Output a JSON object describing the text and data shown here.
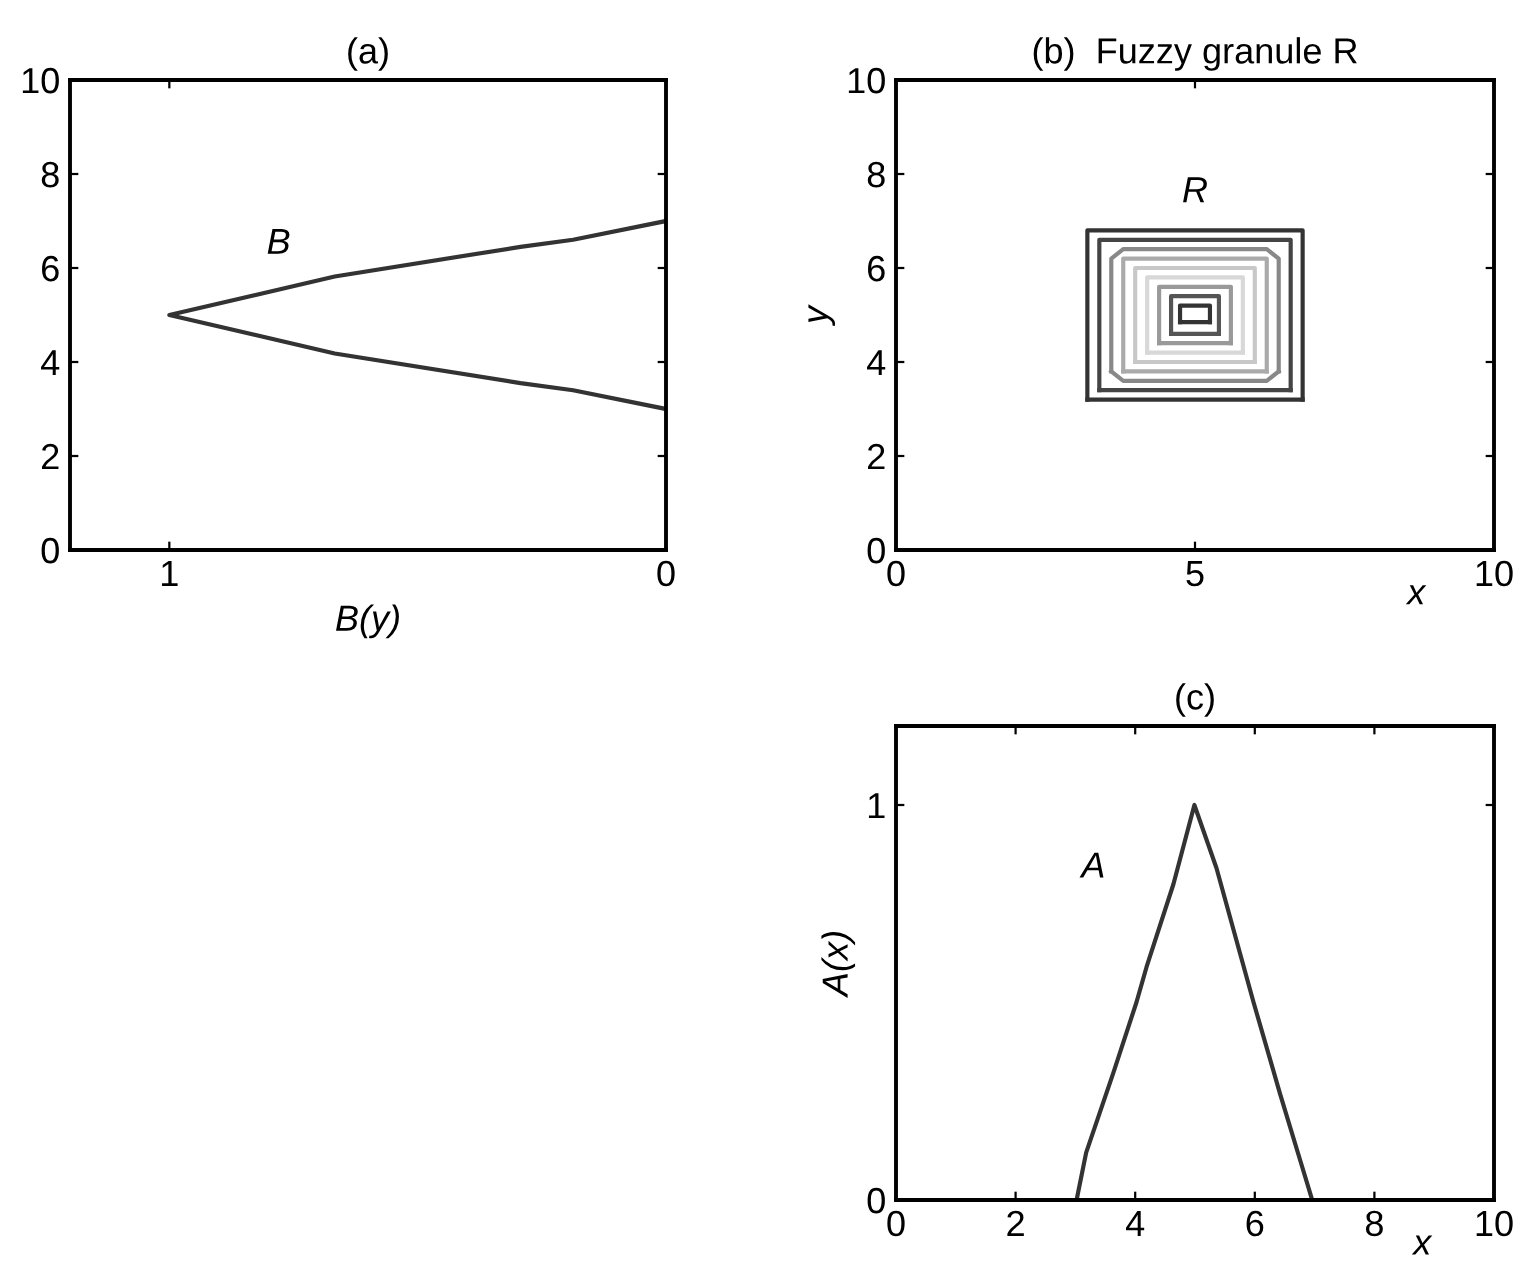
{
  "chart_data": [
    {
      "type": "line",
      "title": "(a)",
      "xlabel": "B(y)",
      "xlim": [
        1.2,
        0
      ],
      "xticks": [
        1,
        0
      ],
      "ylim": [
        0,
        10
      ],
      "yticks": [
        0,
        2,
        4,
        6,
        8,
        10
      ],
      "grid": false,
      "series": [
        {
          "color": "#333333",
          "x": [
            0,
            0.187,
            0.293,
            0.667,
            1,
            0.667,
            0.293,
            0.187,
            0
          ],
          "values": [
            7,
            6.6,
            6.45,
            5.82,
            5,
            4.18,
            3.55,
            3.4,
            3
          ]
        }
      ],
      "annotations": [
        "B"
      ]
    },
    {
      "type": "line",
      "title": "(b)  Fuzzy granule R",
      "xlabel": "x",
      "ylabel": "y",
      "xlim": [
        0,
        10
      ],
      "xticks": [
        0,
        5,
        10
      ],
      "ylim": [
        0,
        10
      ],
      "yticks": [
        0,
        2,
        4,
        6,
        8,
        10
      ],
      "grid": false,
      "series": [
        {
          "color": "#333333",
          "x": [
            3.2,
            3.2,
            6.8,
            6.8
          ],
          "values": [
            3.2,
            6.8,
            6.8,
            3.2
          ]
        },
        {
          "color": "#333333",
          "x": [
            3.2,
            6.8
          ],
          "values": [
            3.2,
            3.2
          ]
        },
        {
          "color": "#444444",
          "x": [
            3.4,
            3.4,
            6.6,
            6.6
          ],
          "values": [
            3.4,
            6.6,
            6.6,
            3.4
          ]
        },
        {
          "color": "#444444",
          "x": [
            3.4,
            6.6
          ],
          "values": [
            3.4,
            3.4
          ]
        },
        {
          "color": "#888888",
          "x": [
            3.6,
            3.6,
            3.8,
            6.2,
            6.4,
            6.4
          ],
          "values": [
            3.8,
            6.2,
            6.4,
            6.4,
            6.2,
            3.8
          ]
        },
        {
          "color": "#888888",
          "x": [
            3.6,
            3.8,
            6.2,
            6.4
          ],
          "values": [
            3.8,
            3.6,
            3.6,
            3.8
          ]
        },
        {
          "color": "#aaaaaa",
          "x": [
            3.8,
            3.8,
            6.2,
            6.2
          ],
          "values": [
            3.8,
            6.2,
            6.2,
            3.8
          ]
        },
        {
          "color": "#aaaaaa",
          "x": [
            3.8,
            6.2
          ],
          "values": [
            3.8,
            3.8
          ]
        },
        {
          "color": "#c8c8c8",
          "x": [
            4.0,
            4.0,
            6.0,
            6.0
          ],
          "values": [
            4.0,
            6.0,
            6.0,
            4.0
          ]
        },
        {
          "color": "#c8c8c8",
          "x": [
            4.0,
            6.0
          ],
          "values": [
            4.0,
            4.0
          ]
        },
        {
          "color": "#d8d8d8",
          "x": [
            4.2,
            4.2,
            5.8,
            5.8
          ],
          "values": [
            4.2,
            5.8,
            5.8,
            4.2
          ]
        },
        {
          "color": "#d8d8d8",
          "x": [
            4.2,
            5.8
          ],
          "values": [
            4.2,
            4.2
          ]
        },
        {
          "color": "#999999",
          "x": [
            4.4,
            4.4,
            5.6,
            5.6
          ],
          "values": [
            4.4,
            5.6,
            5.6,
            4.4
          ]
        },
        {
          "color": "#999999",
          "x": [
            4.4,
            5.6
          ],
          "values": [
            4.4,
            4.4
          ]
        },
        {
          "color": "#555555",
          "x": [
            4.6,
            4.6,
            5.4,
            5.4
          ],
          "values": [
            4.6,
            5.4,
            5.4,
            4.6
          ]
        },
        {
          "color": "#555555",
          "x": [
            4.6,
            5.4
          ],
          "values": [
            4.6,
            4.6
          ]
        },
        {
          "color": "#333333",
          "x": [
            4.75,
            4.75,
            5.25,
            5.25
          ],
          "values": [
            4.85,
            5.2,
            5.2,
            4.85
          ]
        },
        {
          "color": "#333333",
          "x": [
            4.75,
            5.25
          ],
          "values": [
            4.85,
            4.85
          ]
        }
      ],
      "annotations": [
        "R"
      ]
    },
    {
      "type": "line",
      "title": "(c)",
      "xlabel": "x",
      "ylabel": "A(x)",
      "xlim": [
        0,
        10
      ],
      "xticks": [
        0,
        2,
        4,
        6,
        8,
        10
      ],
      "ylim": [
        0,
        1.2
      ],
      "yticks": [
        0,
        1
      ],
      "grid": false,
      "series": [
        {
          "color": "#333333",
          "x": [
            3.02,
            3.18,
            3.63,
            4.02,
            4.19,
            4.64,
            4.99,
            5.36,
            5.98,
            6.42,
            6.76,
            6.96
          ],
          "values": [
            0,
            0.12,
            0.32,
            0.5,
            0.59,
            0.8,
            1.0,
            0.84,
            0.5,
            0.27,
            0.1,
            0
          ]
        }
      ],
      "annotations": [
        "A"
      ]
    }
  ]
}
